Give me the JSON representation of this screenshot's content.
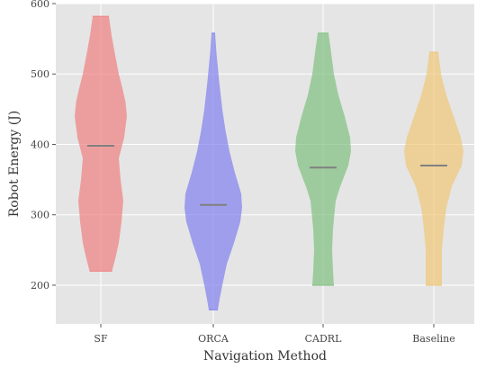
{
  "chart_data": {
    "type": "violin",
    "title": "",
    "xlabel": "Navigation Method",
    "ylabel": "Robot Energy (J)",
    "categories": [
      "SF",
      "ORCA",
      "CADRL",
      "Baseline"
    ],
    "ylim": [
      145,
      600
    ],
    "yticks": [
      200,
      300,
      400,
      500,
      600
    ],
    "grid": true,
    "colors": [
      "#f08080",
      "#8080f0",
      "#80c080",
      "#f0c878"
    ],
    "median_color": "#808080",
    "violins": [
      {
        "category": "SF",
        "min": 220,
        "max": 582,
        "median": 398,
        "profile": [
          [
            220,
            0.25
          ],
          [
            240,
            0.33
          ],
          [
            260,
            0.4
          ],
          [
            290,
            0.46
          ],
          [
            320,
            0.5
          ],
          [
            350,
            0.44
          ],
          [
            380,
            0.4
          ],
          [
            410,
            0.52
          ],
          [
            440,
            0.58
          ],
          [
            460,
            0.55
          ],
          [
            480,
            0.48
          ],
          [
            500,
            0.4
          ],
          [
            530,
            0.31
          ],
          [
            555,
            0.24
          ],
          [
            582,
            0.18
          ]
        ]
      },
      {
        "category": "ORCA",
        "min": 165,
        "max": 558,
        "median": 314,
        "profile": [
          [
            165,
            0.1
          ],
          [
            180,
            0.14
          ],
          [
            200,
            0.2
          ],
          [
            230,
            0.3
          ],
          [
            260,
            0.46
          ],
          [
            290,
            0.6
          ],
          [
            310,
            0.64
          ],
          [
            330,
            0.62
          ],
          [
            360,
            0.48
          ],
          [
            390,
            0.36
          ],
          [
            420,
            0.27
          ],
          [
            450,
            0.2
          ],
          [
            490,
            0.13
          ],
          [
            530,
            0.07
          ],
          [
            558,
            0.04
          ]
        ]
      },
      {
        "category": "CADRL",
        "min": 200,
        "max": 558,
        "median": 367,
        "profile": [
          [
            200,
            0.24
          ],
          [
            220,
            0.22
          ],
          [
            250,
            0.2
          ],
          [
            280,
            0.22
          ],
          [
            320,
            0.28
          ],
          [
            340,
            0.38
          ],
          [
            370,
            0.56
          ],
          [
            390,
            0.62
          ],
          [
            410,
            0.6
          ],
          [
            440,
            0.48
          ],
          [
            470,
            0.34
          ],
          [
            500,
            0.24
          ],
          [
            530,
            0.18
          ],
          [
            558,
            0.12
          ]
        ]
      },
      {
        "category": "Baseline",
        "min": 200,
        "max": 531,
        "median": 370,
        "profile": [
          [
            200,
            0.18
          ],
          [
            220,
            0.18
          ],
          [
            250,
            0.18
          ],
          [
            280,
            0.22
          ],
          [
            310,
            0.28
          ],
          [
            340,
            0.4
          ],
          [
            370,
            0.62
          ],
          [
            390,
            0.66
          ],
          [
            410,
            0.6
          ],
          [
            440,
            0.44
          ],
          [
            470,
            0.28
          ],
          [
            500,
            0.16
          ],
          [
            531,
            0.1
          ]
        ]
      }
    ]
  }
}
